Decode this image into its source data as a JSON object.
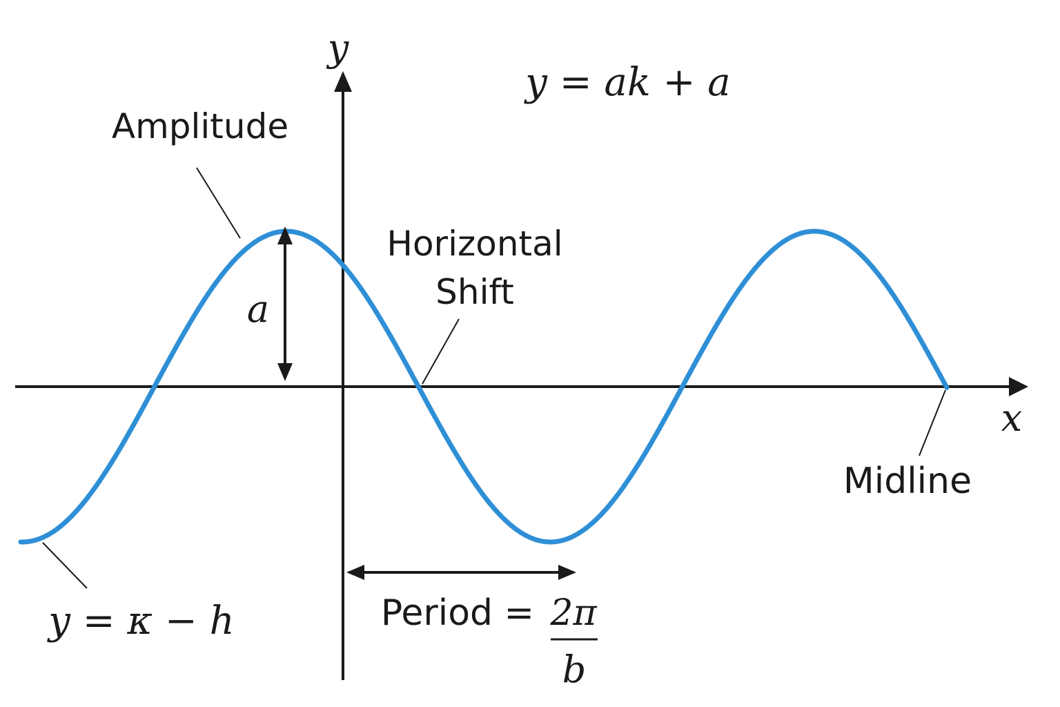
{
  "diagram": {
    "labels": {
      "y_axis": "y",
      "x_axis": "x",
      "top_equation": "y = ak + a",
      "amplitude": "Amplitude",
      "amplitude_symbol": "a",
      "horizontal_shift_line1": "Horizontal",
      "horizontal_shift_line2": "Shift",
      "midline": "Midline",
      "bottom_left_equation": "y = κ − h",
      "period_text": "Period =",
      "period_numerator": "2π",
      "period_denominator": "b"
    },
    "colors": {
      "curve": "#2f8fd6",
      "ink": "#1a1a1a",
      "background": "#ffffff"
    }
  }
}
